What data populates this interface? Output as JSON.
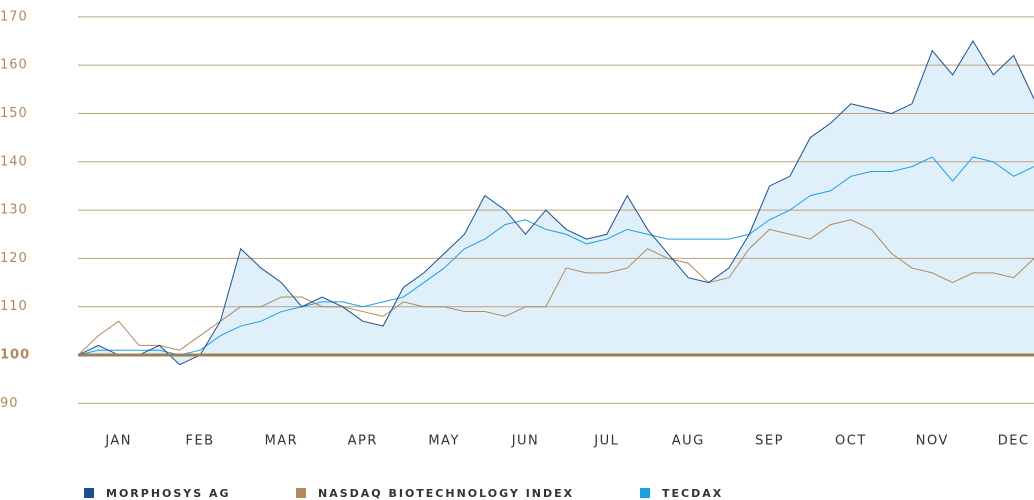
{
  "chart_data": {
    "type": "line",
    "categories": [
      null,
      null,
      "JAN",
      null,
      null,
      null,
      "FEB",
      null,
      null,
      null,
      "MAR",
      null,
      null,
      null,
      "APR",
      null,
      null,
      null,
      "MAY",
      null,
      null,
      null,
      "JUN",
      null,
      null,
      null,
      "JUL",
      null,
      null,
      null,
      "AUG",
      null,
      null,
      null,
      "SEP",
      null,
      null,
      null,
      "OCT",
      null,
      null,
      null,
      "NOV",
      null,
      null,
      null,
      "DEC",
      null
    ],
    "series": [
      {
        "name": "MORPHOSYS AG",
        "color": "#1f4e8c",
        "values": [
          100,
          102,
          100,
          100,
          102,
          98,
          100,
          107,
          122,
          118,
          115,
          110,
          112,
          110,
          107,
          106,
          114,
          117,
          121,
          125,
          133,
          130,
          125,
          130,
          126,
          124,
          125,
          133,
          126,
          121,
          116,
          115,
          118,
          125,
          135,
          137,
          145,
          148,
          152,
          151,
          150,
          152,
          163,
          158,
          165,
          158,
          162,
          153
        ]
      },
      {
        "name": "NASDAQ BIOTECHNOLOGY INDEX",
        "color": "#b08a5e",
        "values": [
          100,
          104,
          107,
          102,
          102,
          101,
          104,
          107,
          110,
          110,
          112,
          112,
          110,
          110,
          109,
          108,
          111,
          110,
          110,
          109,
          109,
          108,
          110,
          110,
          118,
          117,
          117,
          118,
          122,
          120,
          119,
          115,
          116,
          122,
          126,
          125,
          124,
          127,
          128,
          126,
          121,
          118,
          117,
          115,
          117,
          117,
          116,
          120
        ]
      },
      {
        "name": "TECDAX",
        "color": "#1ea0e0",
        "values": [
          100,
          101,
          101,
          101,
          101,
          100,
          101,
          104,
          106,
          107,
          109,
          110,
          111,
          111,
          110,
          111,
          112,
          115,
          118,
          122,
          124,
          127,
          128,
          126,
          125,
          123,
          124,
          126,
          125,
          124,
          124,
          124,
          124,
          125,
          128,
          130,
          133,
          134,
          137,
          138,
          138,
          139,
          141,
          136,
          141,
          140,
          137,
          139
        ]
      }
    ],
    "ylim": [
      88,
      172
    ],
    "yticks": [
      90,
      100,
      110,
      120,
      130,
      140,
      150,
      160,
      170
    ],
    "grid": true
  }
}
